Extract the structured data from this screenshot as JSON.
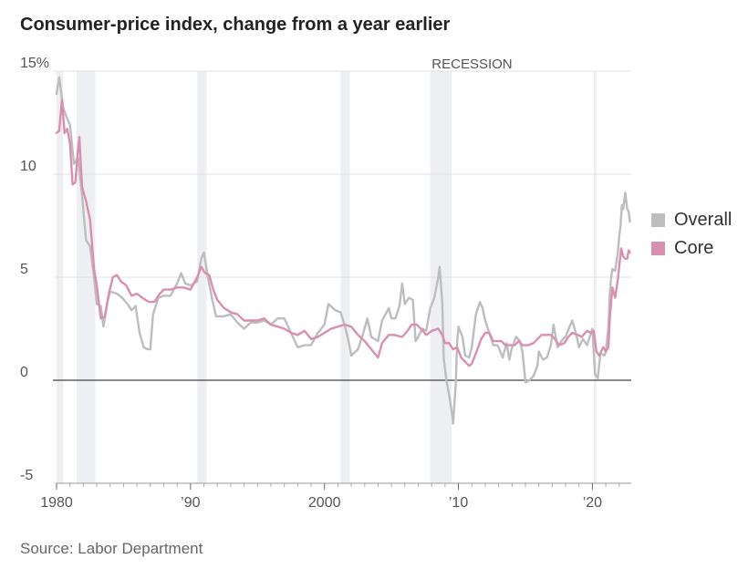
{
  "title": "Consumer-price index, change from a year earlier",
  "source": "Source: Labor Department",
  "colors": {
    "overall": "#bdbdbd",
    "core": "#d98fb0",
    "recession": "#eeeff2",
    "grid": "#e2e2e2",
    "zero": "#444444",
    "text": "#555555"
  },
  "chart_data": {
    "type": "line",
    "title": "Consumer-price index, change from a year earlier",
    "xlabel": "",
    "ylabel": "",
    "xlim": [
      1980,
      2022.9
    ],
    "ylim": [
      -5,
      15
    ],
    "yticks": [
      {
        "value": 15,
        "label": "15%"
      },
      {
        "value": 10,
        "label": "10"
      },
      {
        "value": 5,
        "label": "5"
      },
      {
        "value": 0,
        "label": "0"
      },
      {
        "value": -5,
        "label": "-5"
      }
    ],
    "xticks": [
      {
        "value": 1980,
        "label": "1980"
      },
      {
        "value": 1990,
        "label": "’90"
      },
      {
        "value": 2000,
        "label": "2000"
      },
      {
        "value": 2010,
        "label": "’10"
      },
      {
        "value": 2020,
        "label": "’20"
      }
    ],
    "recession_label": "RECESSION",
    "recessions": [
      [
        1980.0,
        1980.5
      ],
      [
        1981.5,
        1982.9
      ],
      [
        1990.5,
        1991.2
      ],
      [
        2001.2,
        2001.9
      ],
      [
        2007.9,
        2009.5
      ],
      [
        2020.1,
        2020.3
      ]
    ],
    "legend": {
      "position": "right",
      "entries": [
        "Overall",
        "Core"
      ]
    },
    "series": [
      {
        "name": "Overall",
        "color": "#bdbdbd",
        "points": [
          [
            1980,
            13.9
          ],
          [
            1980.2,
            14.7
          ],
          [
            1980.5,
            13.2
          ],
          [
            1980.8,
            12.7
          ],
          [
            1981,
            12.4
          ],
          [
            1981.3,
            10.5
          ],
          [
            1981.6,
            10.8
          ],
          [
            1981.9,
            9.0
          ],
          [
            1982.2,
            6.8
          ],
          [
            1982.5,
            6.5
          ],
          [
            1982.8,
            5.0
          ],
          [
            1983.0,
            3.7
          ],
          [
            1983.3,
            3.6
          ],
          [
            1983.5,
            2.6
          ],
          [
            1983.8,
            3.8
          ],
          [
            1984.0,
            4.3
          ],
          [
            1984.5,
            4.2
          ],
          [
            1984.9,
            4.0
          ],
          [
            1985.3,
            3.7
          ],
          [
            1985.6,
            3.4
          ],
          [
            1985.9,
            3.6
          ],
          [
            1986.2,
            2.3
          ],
          [
            1986.5,
            1.6
          ],
          [
            1986.8,
            1.5
          ],
          [
            1987.0,
            1.5
          ],
          [
            1987.2,
            3.2
          ],
          [
            1987.6,
            4.0
          ],
          [
            1988.0,
            4.1
          ],
          [
            1988.5,
            4.1
          ],
          [
            1989.0,
            4.7
          ],
          [
            1989.3,
            5.2
          ],
          [
            1989.6,
            4.7
          ],
          [
            1990.0,
            4.6
          ],
          [
            1990.5,
            4.8
          ],
          [
            1990.8,
            5.9
          ],
          [
            1991.0,
            6.2
          ],
          [
            1991.3,
            5.0
          ],
          [
            1991.6,
            4.0
          ],
          [
            1991.9,
            3.1
          ],
          [
            1992.5,
            3.1
          ],
          [
            1993.0,
            3.2
          ],
          [
            1993.5,
            2.8
          ],
          [
            1994.0,
            2.5
          ],
          [
            1994.5,
            2.8
          ],
          [
            1995.0,
            2.8
          ],
          [
            1995.5,
            2.9
          ],
          [
            1996.0,
            2.7
          ],
          [
            1996.5,
            3.0
          ],
          [
            1997.0,
            3.0
          ],
          [
            1997.5,
            2.3
          ],
          [
            1998.0,
            1.6
          ],
          [
            1998.5,
            1.7
          ],
          [
            1999.0,
            1.7
          ],
          [
            1999.5,
            2.3
          ],
          [
            2000.0,
            2.7
          ],
          [
            2000.3,
            3.7
          ],
          [
            2000.8,
            3.4
          ],
          [
            2001.2,
            3.3
          ],
          [
            2001.5,
            2.7
          ],
          [
            2001.8,
            1.9
          ],
          [
            2002.0,
            1.2
          ],
          [
            2002.5,
            1.5
          ],
          [
            2002.9,
            2.3
          ],
          [
            2003.2,
            3.0
          ],
          [
            2003.5,
            2.1
          ],
          [
            2004.0,
            1.9
          ],
          [
            2004.3,
            2.9
          ],
          [
            2004.8,
            3.5
          ],
          [
            2005.0,
            3.0
          ],
          [
            2005.3,
            3.0
          ],
          [
            2005.6,
            3.6
          ],
          [
            2005.8,
            4.7
          ],
          [
            2006.0,
            3.7
          ],
          [
            2006.3,
            4.0
          ],
          [
            2006.6,
            3.9
          ],
          [
            2006.8,
            1.9
          ],
          [
            2007.0,
            2.1
          ],
          [
            2007.3,
            2.5
          ],
          [
            2007.6,
            2.4
          ],
          [
            2007.9,
            3.5
          ],
          [
            2008.2,
            4.0
          ],
          [
            2008.5,
            5.0
          ],
          [
            2008.6,
            5.5
          ],
          [
            2008.8,
            3.7
          ],
          [
            2008.9,
            1.1
          ],
          [
            2009.1,
            0.0
          ],
          [
            2009.3,
            -0.7
          ],
          [
            2009.5,
            -1.5
          ],
          [
            2009.6,
            -2.1
          ],
          [
            2009.8,
            -0.2
          ],
          [
            2009.9,
            1.8
          ],
          [
            2010.0,
            2.6
          ],
          [
            2010.3,
            2.1
          ],
          [
            2010.5,
            1.2
          ],
          [
            2010.8,
            1.1
          ],
          [
            2011.0,
            1.6
          ],
          [
            2011.3,
            3.2
          ],
          [
            2011.6,
            3.8
          ],
          [
            2011.8,
            3.5
          ],
          [
            2012.0,
            2.9
          ],
          [
            2012.3,
            2.3
          ],
          [
            2012.6,
            1.7
          ],
          [
            2012.9,
            1.7
          ],
          [
            2013.0,
            1.6
          ],
          [
            2013.3,
            1.1
          ],
          [
            2013.6,
            1.8
          ],
          [
            2013.8,
            1.0
          ],
          [
            2014.0,
            1.6
          ],
          [
            2014.3,
            2.1
          ],
          [
            2014.6,
            1.9
          ],
          [
            2014.8,
            1.3
          ],
          [
            2015.0,
            -0.1
          ],
          [
            2015.3,
            0.0
          ],
          [
            2015.6,
            0.2
          ],
          [
            2015.9,
            0.7
          ],
          [
            2016.0,
            1.4
          ],
          [
            2016.3,
            1.0
          ],
          [
            2016.6,
            1.1
          ],
          [
            2016.9,
            1.7
          ],
          [
            2017.1,
            2.7
          ],
          [
            2017.4,
            1.6
          ],
          [
            2017.8,
            2.0
          ],
          [
            2018.0,
            2.1
          ],
          [
            2018.3,
            2.6
          ],
          [
            2018.5,
            2.9
          ],
          [
            2018.8,
            2.2
          ],
          [
            2019.0,
            1.6
          ],
          [
            2019.3,
            2.0
          ],
          [
            2019.6,
            1.7
          ],
          [
            2019.9,
            2.3
          ],
          [
            2020.0,
            2.5
          ],
          [
            2020.2,
            0.3
          ],
          [
            2020.4,
            0.1
          ],
          [
            2020.6,
            1.3
          ],
          [
            2020.9,
            1.2
          ],
          [
            2021.0,
            1.4
          ],
          [
            2021.2,
            2.6
          ],
          [
            2021.3,
            4.2
          ],
          [
            2021.4,
            5.0
          ],
          [
            2021.5,
            5.4
          ],
          [
            2021.7,
            5.3
          ],
          [
            2021.9,
            6.2
          ],
          [
            2022.0,
            7.0
          ],
          [
            2022.1,
            7.5
          ],
          [
            2022.2,
            8.5
          ],
          [
            2022.3,
            8.3
          ],
          [
            2022.45,
            9.1
          ],
          [
            2022.6,
            8.3
          ],
          [
            2022.7,
            8.2
          ],
          [
            2022.8,
            7.7
          ]
        ]
      },
      {
        "name": "Core",
        "color": "#d98fb0",
        "points": [
          [
            1980,
            12.0
          ],
          [
            1980.2,
            12.1
          ],
          [
            1980.4,
            13.6
          ],
          [
            1980.6,
            12.0
          ],
          [
            1980.8,
            12.2
          ],
          [
            1981.0,
            11.5
          ],
          [
            1981.2,
            9.5
          ],
          [
            1981.4,
            9.6
          ],
          [
            1981.6,
            11.2
          ],
          [
            1981.7,
            11.8
          ],
          [
            1981.9,
            9.4
          ],
          [
            1982.2,
            8.7
          ],
          [
            1982.5,
            7.8
          ],
          [
            1982.8,
            5.4
          ],
          [
            1983.0,
            4.6
          ],
          [
            1983.3,
            3.0
          ],
          [
            1983.6,
            3.1
          ],
          [
            1983.9,
            4.2
          ],
          [
            1984.2,
            5.0
          ],
          [
            1984.5,
            5.1
          ],
          [
            1984.8,
            4.8
          ],
          [
            1985.2,
            4.6
          ],
          [
            1985.6,
            4.1
          ],
          [
            1986.0,
            4.2
          ],
          [
            1986.4,
            4.0
          ],
          [
            1986.9,
            3.8
          ],
          [
            1987.3,
            3.8
          ],
          [
            1987.7,
            4.2
          ],
          [
            1988.0,
            4.4
          ],
          [
            1988.5,
            4.4
          ],
          [
            1989.0,
            4.5
          ],
          [
            1989.5,
            4.5
          ],
          [
            1990.0,
            4.4
          ],
          [
            1990.5,
            5.0
          ],
          [
            1990.8,
            5.5
          ],
          [
            1991.1,
            5.2
          ],
          [
            1991.4,
            5.1
          ],
          [
            1991.7,
            4.4
          ],
          [
            1992.0,
            3.9
          ],
          [
            1992.5,
            3.5
          ],
          [
            1993.0,
            3.3
          ],
          [
            1993.5,
            3.2
          ],
          [
            1994.0,
            2.9
          ],
          [
            1994.5,
            2.9
          ],
          [
            1995.0,
            2.9
          ],
          [
            1995.5,
            3.0
          ],
          [
            1996.0,
            2.7
          ],
          [
            1996.5,
            2.6
          ],
          [
            1997.0,
            2.5
          ],
          [
            1997.5,
            2.3
          ],
          [
            1998.0,
            2.2
          ],
          [
            1998.5,
            2.4
          ],
          [
            1999.0,
            2.0
          ],
          [
            1999.5,
            2.1
          ],
          [
            2000.0,
            2.3
          ],
          [
            2000.5,
            2.5
          ],
          [
            2001.0,
            2.6
          ],
          [
            2001.5,
            2.7
          ],
          [
            2002.0,
            2.6
          ],
          [
            2002.5,
            2.2
          ],
          [
            2003.0,
            1.9
          ],
          [
            2003.5,
            1.5
          ],
          [
            2004.0,
            1.1
          ],
          [
            2004.3,
            1.8
          ],
          [
            2004.8,
            2.2
          ],
          [
            2005.2,
            2.2
          ],
          [
            2005.8,
            2.1
          ],
          [
            2006.2,
            2.4
          ],
          [
            2006.5,
            2.7
          ],
          [
            2006.9,
            2.7
          ],
          [
            2007.2,
            2.5
          ],
          [
            2007.6,
            2.2
          ],
          [
            2008.0,
            2.4
          ],
          [
            2008.5,
            2.5
          ],
          [
            2008.8,
            2.2
          ],
          [
            2009.0,
            1.8
          ],
          [
            2009.3,
            1.8
          ],
          [
            2009.6,
            1.5
          ],
          [
            2009.9,
            1.6
          ],
          [
            2010.2,
            1.1
          ],
          [
            2010.5,
            0.9
          ],
          [
            2010.8,
            0.7
          ],
          [
            2011.0,
            0.8
          ],
          [
            2011.3,
            1.3
          ],
          [
            2011.7,
            2.0
          ],
          [
            2012.0,
            2.3
          ],
          [
            2012.3,
            2.3
          ],
          [
            2012.6,
            1.9
          ],
          [
            2012.9,
            1.9
          ],
          [
            2013.2,
            1.9
          ],
          [
            2013.5,
            1.7
          ],
          [
            2013.9,
            1.7
          ],
          [
            2014.2,
            1.7
          ],
          [
            2014.5,
            1.9
          ],
          [
            2014.8,
            1.7
          ],
          [
            2015.2,
            1.7
          ],
          [
            2015.6,
            1.8
          ],
          [
            2015.9,
            2.0
          ],
          [
            2016.2,
            2.2
          ],
          [
            2016.6,
            2.2
          ],
          [
            2016.9,
            2.2
          ],
          [
            2017.2,
            2.0
          ],
          [
            2017.5,
            1.7
          ],
          [
            2017.9,
            1.8
          ],
          [
            2018.2,
            2.1
          ],
          [
            2018.5,
            2.3
          ],
          [
            2018.9,
            2.2
          ],
          [
            2019.2,
            2.1
          ],
          [
            2019.6,
            2.4
          ],
          [
            2019.9,
            2.3
          ],
          [
            2020.1,
            2.4
          ],
          [
            2020.3,
            1.4
          ],
          [
            2020.5,
            1.2
          ],
          [
            2020.8,
            1.6
          ],
          [
            2021.0,
            1.4
          ],
          [
            2021.2,
            1.6
          ],
          [
            2021.3,
            3.0
          ],
          [
            2021.4,
            3.8
          ],
          [
            2021.5,
            4.5
          ],
          [
            2021.7,
            4.0
          ],
          [
            2021.9,
            4.9
          ],
          [
            2022.0,
            5.5
          ],
          [
            2022.15,
            6.4
          ],
          [
            2022.3,
            6.0
          ],
          [
            2022.45,
            5.9
          ],
          [
            2022.6,
            5.9
          ],
          [
            2022.7,
            6.3
          ],
          [
            2022.8,
            6.2
          ]
        ]
      }
    ]
  }
}
